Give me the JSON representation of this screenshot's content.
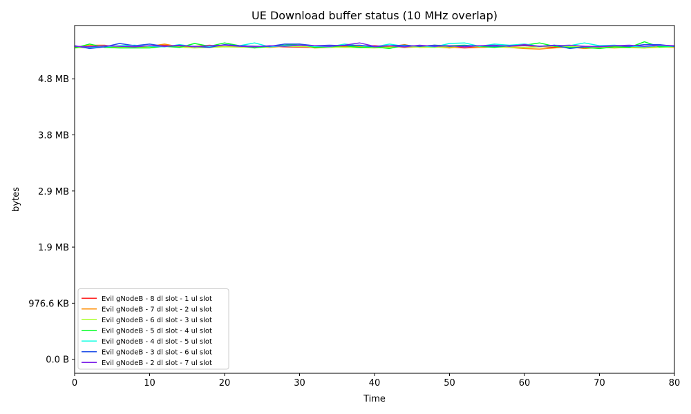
{
  "chart_data": {
    "type": "line",
    "title": "UE Download buffer status (10 MHz overlap)",
    "xlabel": "Time",
    "ylabel": "bytes",
    "xlim": [
      0,
      80
    ],
    "ylim": [
      -250000,
      5950000
    ],
    "x_ticks": [
      0,
      10,
      20,
      30,
      40,
      50,
      60,
      70,
      80
    ],
    "x_tick_labels": [
      "0",
      "10",
      "20",
      "30",
      "40",
      "50",
      "60",
      "70",
      "80"
    ],
    "y_ticks": [
      0,
      1000000,
      2000000,
      3000000,
      4000000,
      5000000
    ],
    "y_tick_labels": [
      "0.0 B",
      "976.6 KB",
      "1.9 MB",
      "2.9 MB",
      "3.8 MB",
      "4.8 MB"
    ],
    "grid": false,
    "legend_position": "lower-left",
    "series": [
      {
        "name": "Evil gNodeB - 8 dl slot - 1 ul slot",
        "color": "#ff1f1f",
        "x": [
          0,
          4,
          8,
          12,
          16,
          20,
          24,
          28,
          32,
          36,
          40,
          44,
          48,
          52,
          56,
          60,
          64,
          68,
          72,
          76,
          80
        ],
        "y": [
          5560000,
          5590000,
          5570000,
          5600000,
          5570000,
          5600000,
          5580000,
          5570000,
          5560000,
          5580000,
          5590000,
          5560000,
          5580000,
          5550000,
          5570000,
          5590000,
          5560000,
          5580000,
          5570000,
          5560000,
          5580000
        ]
      },
      {
        "name": "Evil gNodeB - 7 dl slot - 2 ul slot",
        "color": "#ff8c00",
        "x": [
          0,
          2,
          4,
          6,
          8,
          10,
          12,
          14,
          16,
          18,
          20,
          22,
          24,
          26,
          28,
          30,
          32,
          34,
          36,
          38,
          40,
          42,
          44,
          46,
          48,
          50,
          52,
          54,
          56,
          58,
          60,
          62,
          64,
          66,
          68,
          70,
          72,
          74,
          76,
          78,
          80
        ],
        "y": [
          5560000,
          5600000,
          5600000,
          5560000,
          5570000,
          5580000,
          5620000,
          5570000,
          5580000,
          5600000,
          5570000,
          5590000,
          5580000,
          5560000,
          5580000,
          5600000,
          5550000,
          5560000,
          5570000,
          5580000,
          5560000,
          5570000,
          5610000,
          5560000,
          5570000,
          5550000,
          5580000,
          5560000,
          5570000,
          5560000,
          5540000,
          5530000,
          5550000,
          5570000,
          5540000,
          5560000,
          5550000,
          5560000,
          5550000,
          5570000,
          5560000
        ]
      },
      {
        "name": "Evil gNodeB - 6 dl slot - 3 ul slot",
        "color": "#adff2f",
        "x": [
          0,
          4,
          8,
          12,
          16,
          20,
          24,
          28,
          32,
          36,
          40,
          44,
          48,
          52,
          56,
          60,
          64,
          68,
          72,
          76,
          80
        ],
        "y": [
          5550000,
          5570000,
          5560000,
          5580000,
          5550000,
          5570000,
          5560000,
          5580000,
          5570000,
          5560000,
          5550000,
          5570000,
          5560000,
          5580000,
          5570000,
          5560000,
          5580000,
          5570000,
          5560000,
          5550000,
          5570000
        ]
      },
      {
        "name": "Evil gNodeB - 5 dl slot - 4 ul slot",
        "color": "#00ff26",
        "x": [
          0,
          2,
          4,
          6,
          8,
          10,
          12,
          14,
          16,
          18,
          20,
          22,
          24,
          26,
          28,
          30,
          32,
          34,
          36,
          38,
          40,
          42,
          44,
          46,
          48,
          50,
          52,
          54,
          56,
          58,
          60,
          62,
          64,
          66,
          68,
          70,
          72,
          74,
          76,
          78,
          80
        ],
        "y": [
          5550000,
          5620000,
          5560000,
          5550000,
          5550000,
          5550000,
          5580000,
          5560000,
          5630000,
          5580000,
          5640000,
          5590000,
          5550000,
          5580000,
          5600000,
          5620000,
          5560000,
          5570000,
          5590000,
          5560000,
          5570000,
          5540000,
          5600000,
          5580000,
          5600000,
          5590000,
          5600000,
          5580000,
          5560000,
          5590000,
          5600000,
          5640000,
          5580000,
          5560000,
          5560000,
          5540000,
          5570000,
          5560000,
          5660000,
          5570000,
          5580000
        ]
      },
      {
        "name": "Evil gNodeB - 4 dl slot - 5 ul slot",
        "color": "#00ffe0",
        "x": [
          0,
          2,
          4,
          6,
          8,
          10,
          12,
          14,
          16,
          18,
          20,
          22,
          24,
          26,
          28,
          30,
          32,
          34,
          36,
          38,
          40,
          42,
          44,
          46,
          48,
          50,
          52,
          54,
          56,
          58,
          60,
          62,
          64,
          66,
          68,
          70,
          72,
          74,
          76,
          78,
          80
        ],
        "y": [
          5580000,
          5560000,
          5570000,
          5590000,
          5600000,
          5580000,
          5570000,
          5610000,
          5570000,
          5580000,
          5600000,
          5590000,
          5640000,
          5570000,
          5590000,
          5600000,
          5580000,
          5570000,
          5620000,
          5590000,
          5570000,
          5620000,
          5580000,
          5590000,
          5570000,
          5630000,
          5640000,
          5580000,
          5620000,
          5600000,
          5620000,
          5580000,
          5600000,
          5590000,
          5640000,
          5590000,
          5600000,
          5580000,
          5570000,
          5590000,
          5580000
        ]
      },
      {
        "name": "Evil gNodeB - 3 dl slot - 6 ul slot",
        "color": "#1f4fe8",
        "x": [
          0,
          2,
          4,
          6,
          8,
          10,
          12,
          14,
          16,
          18,
          20,
          22,
          24,
          26,
          28,
          30,
          32,
          34,
          36,
          38,
          40,
          42,
          44,
          46,
          48,
          50,
          52,
          54,
          56,
          58,
          60,
          62,
          64,
          66,
          68,
          70,
          72,
          74,
          76,
          78,
          80
        ],
        "y": [
          5590000,
          5540000,
          5570000,
          5630000,
          5590000,
          5620000,
          5580000,
          5590000,
          5580000,
          5560000,
          5610000,
          5590000,
          5580000,
          5580000,
          5620000,
          5620000,
          5590000,
          5600000,
          5590000,
          5600000,
          5570000,
          5590000,
          5600000,
          5580000,
          5600000,
          5580000,
          5590000,
          5590000,
          5580000,
          5590000,
          5600000,
          5580000,
          5600000,
          5540000,
          5570000,
          5580000,
          5590000,
          5580000,
          5610000,
          5610000,
          5580000
        ]
      },
      {
        "name": "Evil gNodeB - 2 dl slot - 7 ul slot",
        "color": "#7b1fe8",
        "x": [
          0,
          2,
          4,
          6,
          8,
          10,
          12,
          14,
          16,
          18,
          20,
          22,
          24,
          26,
          28,
          30,
          32,
          34,
          36,
          38,
          40,
          42,
          44,
          46,
          48,
          50,
          52,
          54,
          56,
          58,
          60,
          62,
          64,
          66,
          68,
          70,
          72,
          74,
          76,
          78,
          80
        ],
        "y": [
          5580000,
          5570000,
          5590000,
          5580000,
          5570000,
          5590000,
          5580000,
          5600000,
          5570000,
          5590000,
          5600000,
          5580000,
          5570000,
          5590000,
          5580000,
          5600000,
          5590000,
          5580000,
          5600000,
          5640000,
          5580000,
          5590000,
          5570000,
          5600000,
          5580000,
          5590000,
          5570000,
          5590000,
          5600000,
          5580000,
          5610000,
          5580000,
          5590000,
          5600000,
          5580000,
          5570000,
          5590000,
          5600000,
          5580000,
          5600000,
          5590000
        ]
      }
    ]
  }
}
